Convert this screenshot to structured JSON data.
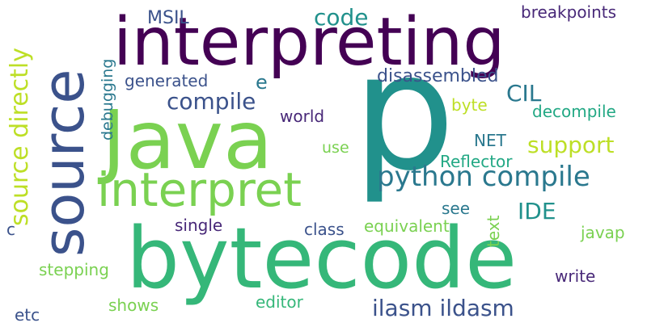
{
  "words": {
    "p": {
      "text": "p",
      "color": "#21918c"
    },
    "interpreting": {
      "text": "interpreting",
      "color": "#440154"
    },
    "java": {
      "text": "Java",
      "color": "#7ad151"
    },
    "source": {
      "text": "source",
      "color": "#3b528b"
    },
    "bytecode": {
      "text": "bytecode",
      "color": "#35b779"
    },
    "interpret": {
      "text": "interpret",
      "color": "#7ad151"
    },
    "python_compile": {
      "text": "python compile",
      "color": "#2a788e"
    },
    "source_directly": {
      "text": "source directly",
      "color": "#bddf26"
    },
    "code": {
      "text": "code",
      "color": "#21918c"
    },
    "msil": {
      "text": "MSIL",
      "color": "#3b528b"
    },
    "breakpoints": {
      "text": "breakpoints",
      "color": "#482878"
    },
    "compile": {
      "text": "compile",
      "color": "#3b528b"
    },
    "e": {
      "text": "e",
      "color": "#2a788e"
    },
    "generated": {
      "text": "generated",
      "color": "#3b528b"
    },
    "debugging": {
      "text": "debugging",
      "color": "#2a788e"
    },
    "disassembled": {
      "text": "disassembled",
      "color": "#3b528b"
    },
    "cil": {
      "text": "CIL",
      "color": "#2a788e"
    },
    "byte": {
      "text": "byte",
      "color": "#bddf26"
    },
    "decompile": {
      "text": "decompile",
      "color": "#22a884"
    },
    "world": {
      "text": "world",
      "color": "#482878"
    },
    "net": {
      "text": "NET",
      "color": "#2a788e"
    },
    "support": {
      "text": "support",
      "color": "#bddf26"
    },
    "use": {
      "text": "use",
      "color": "#7ad151"
    },
    "reflector": {
      "text": "Reflector",
      "color": "#22a884"
    },
    "ide": {
      "text": "IDE",
      "color": "#21918c"
    },
    "see": {
      "text": "see",
      "color": "#2a788e"
    },
    "text": {
      "text": "text",
      "color": "#7ad151"
    },
    "single": {
      "text": "single",
      "color": "#482878"
    },
    "class": {
      "text": "class",
      "color": "#3b528b"
    },
    "equivalent": {
      "text": "equivalent",
      "color": "#7ad151"
    },
    "javap": {
      "text": "javap",
      "color": "#7ad151"
    },
    "c": {
      "text": "c",
      "color": "#3b528b"
    },
    "stepping": {
      "text": "stepping",
      "color": "#7ad151"
    },
    "write": {
      "text": "write",
      "color": "#482878"
    },
    "shows": {
      "text": "shows",
      "color": "#7ad151"
    },
    "editor": {
      "text": "editor",
      "color": "#35b779"
    },
    "ilasm_ildasm": {
      "text": "ilasm ildasm",
      "color": "#3b528b"
    },
    "etc": {
      "text": "etc",
      "color": "#3b528b"
    }
  }
}
